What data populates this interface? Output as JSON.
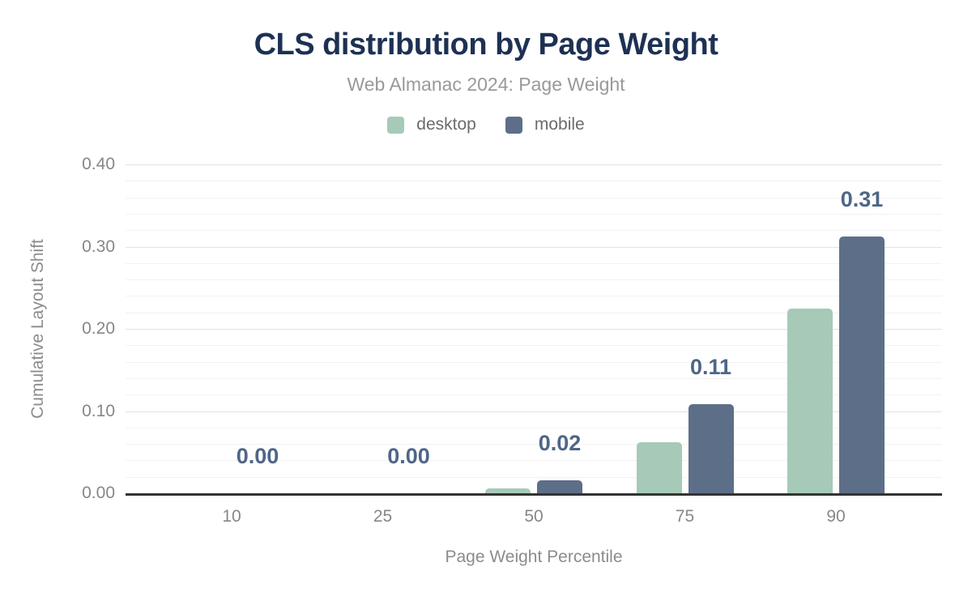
{
  "chart_data": {
    "type": "bar",
    "title": "CLS distribution by Page Weight",
    "subtitle": "Web Almanac 2024: Page Weight",
    "xlabel": "Page Weight Percentile",
    "ylabel": "Cumulative Layout Shift",
    "categories": [
      "10",
      "25",
      "50",
      "75",
      "90"
    ],
    "series": [
      {
        "name": "desktop",
        "color": "#a6cab7",
        "values": [
          0,
          0,
          0.006,
          0.062,
          0.225
        ]
      },
      {
        "name": "mobile",
        "color": "#5d6f88",
        "values": [
          0,
          0,
          0.016,
          0.108,
          0.312
        ]
      }
    ],
    "value_labels": [
      "0.00",
      "0.00",
      "0.02",
      "0.11",
      "0.31"
    ],
    "ylim": [
      0,
      0.4
    ],
    "yticks": [
      {
        "value": 0.0,
        "label": "0.00"
      },
      {
        "value": 0.1,
        "label": "0.10"
      },
      {
        "value": 0.2,
        "label": "0.20"
      },
      {
        "value": 0.3,
        "label": "0.30"
      },
      {
        "value": 0.4,
        "label": "0.40"
      }
    ],
    "minor_grid_step": 0.02,
    "major_grid_step": 0.1,
    "grid": true,
    "legend_position": "top"
  },
  "colors": {
    "title": "#1d3153",
    "subtitle": "#98999b",
    "axis_text": "#85878a",
    "axis_title": "#8a8c8e",
    "axis_line": "#333333",
    "value_label": "#4e6687",
    "grid_minor": "#f2f2f2",
    "grid_major": "#e2e2e2",
    "desktop_series": "#a6cab7",
    "mobile_series": "#5d6f88",
    "background": "#ffffff"
  }
}
